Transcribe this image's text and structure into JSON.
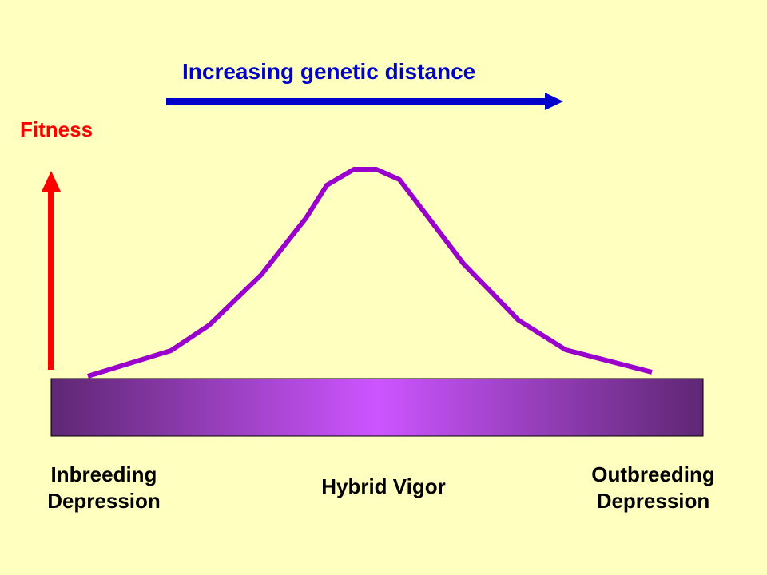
{
  "diagram": {
    "top_arrow_label": "Increasing genetic distance",
    "fitness_label": "Fitness",
    "regions": {
      "left": [
        "Inbreeding",
        "Depression"
      ],
      "middle": "Hybrid Vigor",
      "right": [
        "Outbreeding",
        "Depression"
      ]
    }
  },
  "colors": {
    "background": "#FFFFC0",
    "distance_arrow": "#0000CC",
    "fitness_arrow": "#FF0000",
    "curve": "#9900CC",
    "bar_edge": "#5E2773",
    "bar_center": "#CC55FF",
    "text_blue": "#0000CC",
    "text_red": "#FF0000",
    "text_black": "#000000"
  }
}
